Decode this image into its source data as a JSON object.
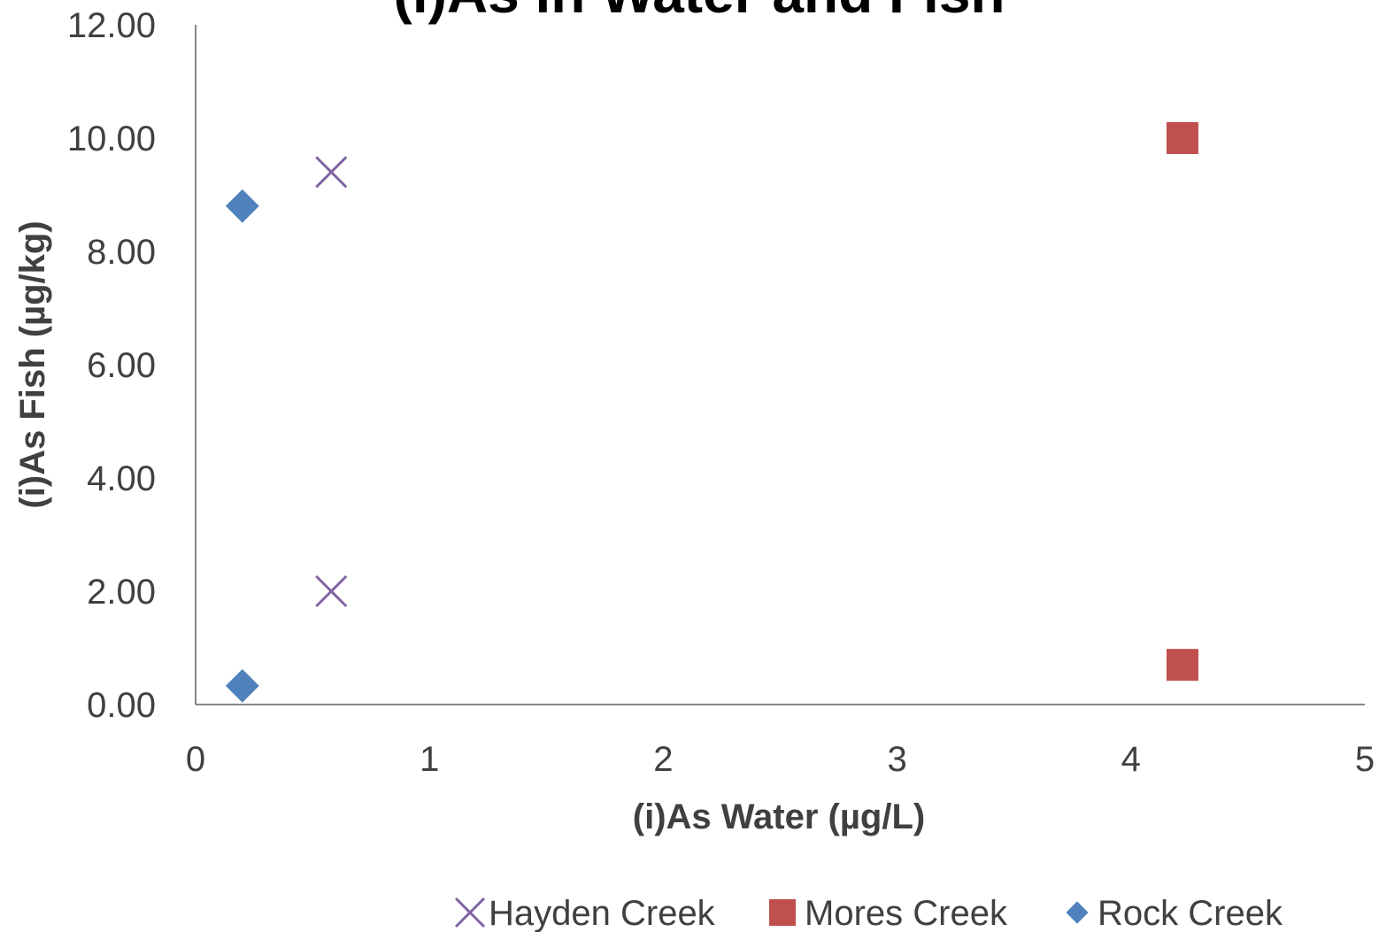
{
  "chart_data": {
    "type": "scatter",
    "title": "(i)As in Water and Fish",
    "xlabel": "(i)As Water (µg/L)",
    "ylabel": "(i)As Fish (µg/kg)",
    "xlim": [
      0,
      5
    ],
    "ylim": [
      0,
      12
    ],
    "x_ticks": [
      0,
      1,
      2,
      3,
      4,
      5
    ],
    "x_tick_labels": [
      "0",
      "1",
      "2",
      "3",
      "4",
      "5"
    ],
    "y_ticks": [
      0,
      2,
      4,
      6,
      8,
      10,
      12
    ],
    "y_tick_labels": [
      "0.00",
      "2.00",
      "4.00",
      "6.00",
      "8.00",
      "10.00",
      "12.00"
    ],
    "grid": false,
    "legend_position": "bottom",
    "series": [
      {
        "name": "Hayden Creek",
        "marker": "x",
        "color": "#8064A2",
        "points": [
          [
            0.58,
            9.4
          ],
          [
            0.58,
            2.0
          ]
        ]
      },
      {
        "name": "Mores Creek",
        "marker": "square",
        "color": "#C0504D",
        "points": [
          [
            4.22,
            10.0
          ],
          [
            4.22,
            0.7
          ]
        ]
      },
      {
        "name": "Rock Creek",
        "marker": "diamond",
        "color": "#4F81BD",
        "points": [
          [
            0.2,
            8.8
          ],
          [
            0.2,
            0.33
          ]
        ]
      }
    ]
  }
}
